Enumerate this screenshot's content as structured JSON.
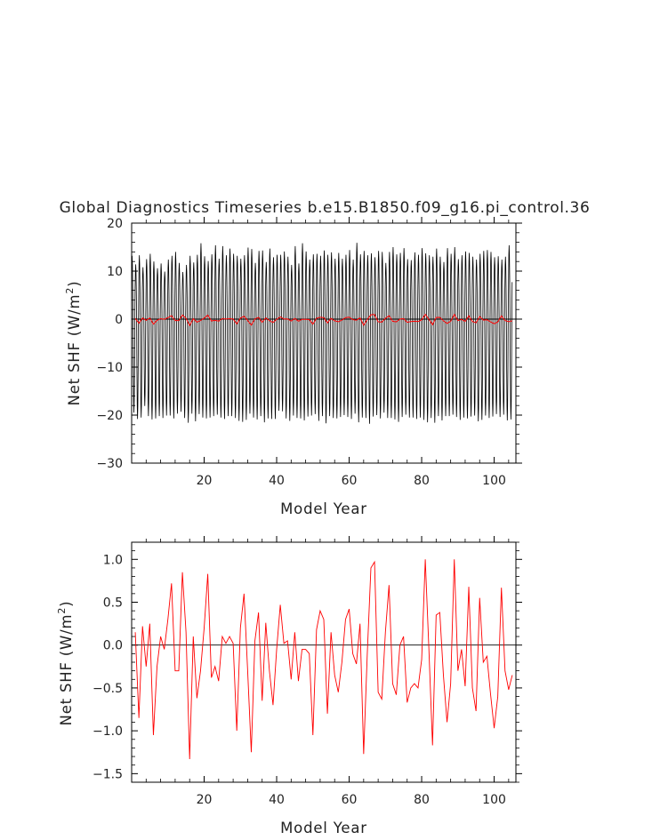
{
  "figure": {
    "title": "Global Diagnostics Timeseries b.e15.B1850.f09_g16.pi_control.36"
  },
  "chart_data": [
    {
      "type": "line",
      "title": "Global Diagnostics Timeseries b.e15.B1850.f09_g16.pi_control.36",
      "xlabel": "Model Year",
      "ylabel_text": "Net SHF (W/m",
      "ylabel_sup": "2",
      "ylabel_close": ")",
      "xlim": [
        0,
        106
      ],
      "ylim": [
        -30,
        20
      ],
      "xticks": [
        20,
        40,
        60,
        80,
        100
      ],
      "xtick_labels": [
        "20",
        "40",
        "60",
        "80",
        "100"
      ],
      "yticks": [
        -30,
        -20,
        -10,
        0,
        10,
        20
      ],
      "ytick_labels": [
        "−30",
        "−20",
        "−10",
        "0",
        "10",
        "20"
      ],
      "zero_line": true,
      "series": [
        {
          "color": "#000000",
          "resolution": "monthly",
          "summer_peak": [
            13.2,
            11.4,
            13.3,
            10.8,
            12.5,
            13.6,
            12.0,
            10.6,
            11.6,
            9.9,
            12.4,
            13.2,
            14.0,
            11.7,
            9.8,
            11.3,
            13.2,
            11.8,
            13.4,
            15.8,
            13.1,
            12.1,
            13.5,
            15.4,
            12.6,
            15.2,
            13.3,
            14.7,
            13.6,
            13.2,
            12.6,
            13.3,
            14.9,
            14.6,
            11.7,
            14.2,
            14.3,
            11.9,
            14.7,
            12.9,
            13.4,
            13.4,
            14.1,
            13.0,
            11.3,
            15.2,
            11.6,
            15.8,
            14.1,
            12.4,
            13.5,
            13.6,
            13.2,
            14.3,
            13.4,
            13.9,
            12.6,
            13.8,
            12.6,
            13.4,
            14.4,
            12.4,
            15.9,
            13.5,
            14.2,
            13.3,
            13.7,
            12.9,
            14.2,
            14.0,
            11.7,
            14.0,
            15.0,
            13.5,
            13.8,
            14.8,
            12.5,
            12.3,
            13.9,
            13.4,
            14.8,
            13.7,
            13.3,
            13.0,
            14.7,
            13.0,
            11.9,
            14.8,
            13.6,
            15.0,
            12.5,
            13.3,
            14.1,
            13.8,
            13.0,
            12.4,
            13.6,
            14.2,
            14.4,
            14.0,
            12.9,
            13.1,
            12.4,
            13.0,
            15.4
          ],
          "winter_trough": [
            -19.5,
            -20.8,
            -20.5,
            -18.1,
            -20.2,
            -20.9,
            -20.7,
            -20.2,
            -20.6,
            -20.1,
            -20.1,
            -20.7,
            -19.7,
            -19.3,
            -20.6,
            -21.6,
            -19.7,
            -21.3,
            -19.8,
            -20.5,
            -20.7,
            -20.5,
            -20.2,
            -19.9,
            -20.5,
            -20.8,
            -20.2,
            -20.2,
            -20.6,
            -21.2,
            -21.4,
            -21.0,
            -19.7,
            -20.5,
            -20.9,
            -20.2,
            -21.5,
            -20.7,
            -20.8,
            -20.8,
            -19.1,
            -19.2,
            -20.7,
            -21.2,
            -20.1,
            -20.6,
            -20.7,
            -21.1,
            -20.3,
            -20.1,
            -19.8,
            -21.2,
            -20.2,
            -21.7,
            -20.2,
            -20.6,
            -20.7,
            -20.4,
            -20.0,
            -20.4,
            -20.8,
            -19.7,
            -21.5,
            -20.5,
            -20.6,
            -21.8,
            -20.3,
            -20.0,
            -20.7,
            -19.5,
            -20.6,
            -20.6,
            -20.9,
            -21.4,
            -20.4,
            -19.9,
            -20.5,
            -20.5,
            -20.8,
            -20.5,
            -21.0,
            -21.5,
            -20.6,
            -21.6,
            -20.2,
            -21.1,
            -20.2,
            -20.2,
            -19.9,
            -20.4,
            -21.0,
            -20.5,
            -20.7,
            -20.3,
            -20.1,
            -21.3,
            -21.0,
            -20.1,
            -20.6,
            -20.3,
            -19.8,
            -20.4,
            -19.9,
            -21.1,
            -20.9
          ]
        },
        {
          "color": "#ff0000",
          "resolution": "annual mean",
          "ref": "chart_data.1.series.0.y"
        }
      ]
    },
    {
      "type": "line",
      "xlabel": "Model Year",
      "ylabel_text": "Net SHF (W/m",
      "ylabel_sup": "2",
      "ylabel_close": ")",
      "xlim": [
        0,
        106
      ],
      "ylim": [
        -1.6,
        1.2
      ],
      "xticks": [
        20,
        40,
        60,
        80,
        100
      ],
      "xtick_labels": [
        "20",
        "40",
        "60",
        "80",
        "100"
      ],
      "yticks": [
        -1.5,
        -1.0,
        -0.5,
        0.0,
        0.5,
        1.0
      ],
      "ytick_labels": [
        "−1.5",
        "−1.0",
        "−0.5",
        "0.0",
        "0.5",
        "1.0"
      ],
      "zero_line": true,
      "series": [
        {
          "color": "#ff0000",
          "x_start": 1,
          "y": [
            0.15,
            -0.85,
            0.22,
            -0.25,
            0.25,
            -1.05,
            -0.25,
            0.1,
            -0.05,
            0.3,
            0.72,
            -0.3,
            -0.3,
            0.85,
            0.15,
            -1.33,
            0.1,
            -0.62,
            -0.3,
            0.2,
            0.83,
            -0.38,
            -0.25,
            -0.42,
            0.1,
            0.02,
            0.1,
            0.02,
            -1.0,
            0.2,
            0.6,
            -0.3,
            -1.25,
            0.05,
            0.38,
            -0.65,
            0.26,
            -0.3,
            -0.7,
            -0.05,
            0.47,
            0.02,
            0.05,
            -0.4,
            0.15,
            -0.42,
            -0.05,
            -0.05,
            -0.1,
            -1.05,
            0.18,
            0.4,
            0.3,
            -0.8,
            0.15,
            -0.35,
            -0.55,
            -0.2,
            0.3,
            0.42,
            -0.1,
            -0.22,
            0.25,
            -1.27,
            -0.1,
            0.9,
            0.97,
            -0.55,
            -0.63,
            0.15,
            0.7,
            -0.45,
            -0.58,
            0.0,
            0.1,
            -0.67,
            -0.5,
            -0.45,
            -0.5,
            -0.17,
            1.0,
            -0.05,
            -1.17,
            0.35,
            0.38,
            -0.35,
            -0.9,
            -0.45,
            1.0,
            -0.3,
            -0.05,
            -0.48,
            0.68,
            -0.5,
            -0.77,
            0.55,
            -0.2,
            -0.13,
            -0.57,
            -0.97,
            -0.6,
            0.67,
            -0.3,
            -0.52,
            -0.35
          ]
        }
      ]
    }
  ]
}
